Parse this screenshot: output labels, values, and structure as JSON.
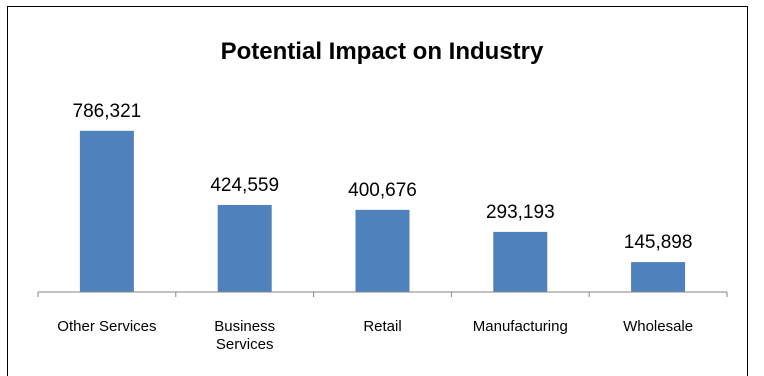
{
  "chart_data": {
    "type": "bar",
    "title": "Potential Impact on Industry",
    "categories": [
      [
        "Other Services"
      ],
      [
        "Business",
        "Services"
      ],
      [
        "Retail"
      ],
      [
        "Manufacturing"
      ],
      [
        "Wholesale"
      ]
    ],
    "values": [
      786321,
      424559,
      400676,
      293193,
      145898
    ],
    "value_labels": [
      "786,321",
      "424,559",
      "400,676",
      "293,193",
      "145,898"
    ],
    "xlabel": "",
    "ylabel": "",
    "ylim": [
      0,
      1000000
    ],
    "grid": false,
    "legend": "none",
    "bar_color": "#4F81BD",
    "axis_color": "#868686"
  }
}
